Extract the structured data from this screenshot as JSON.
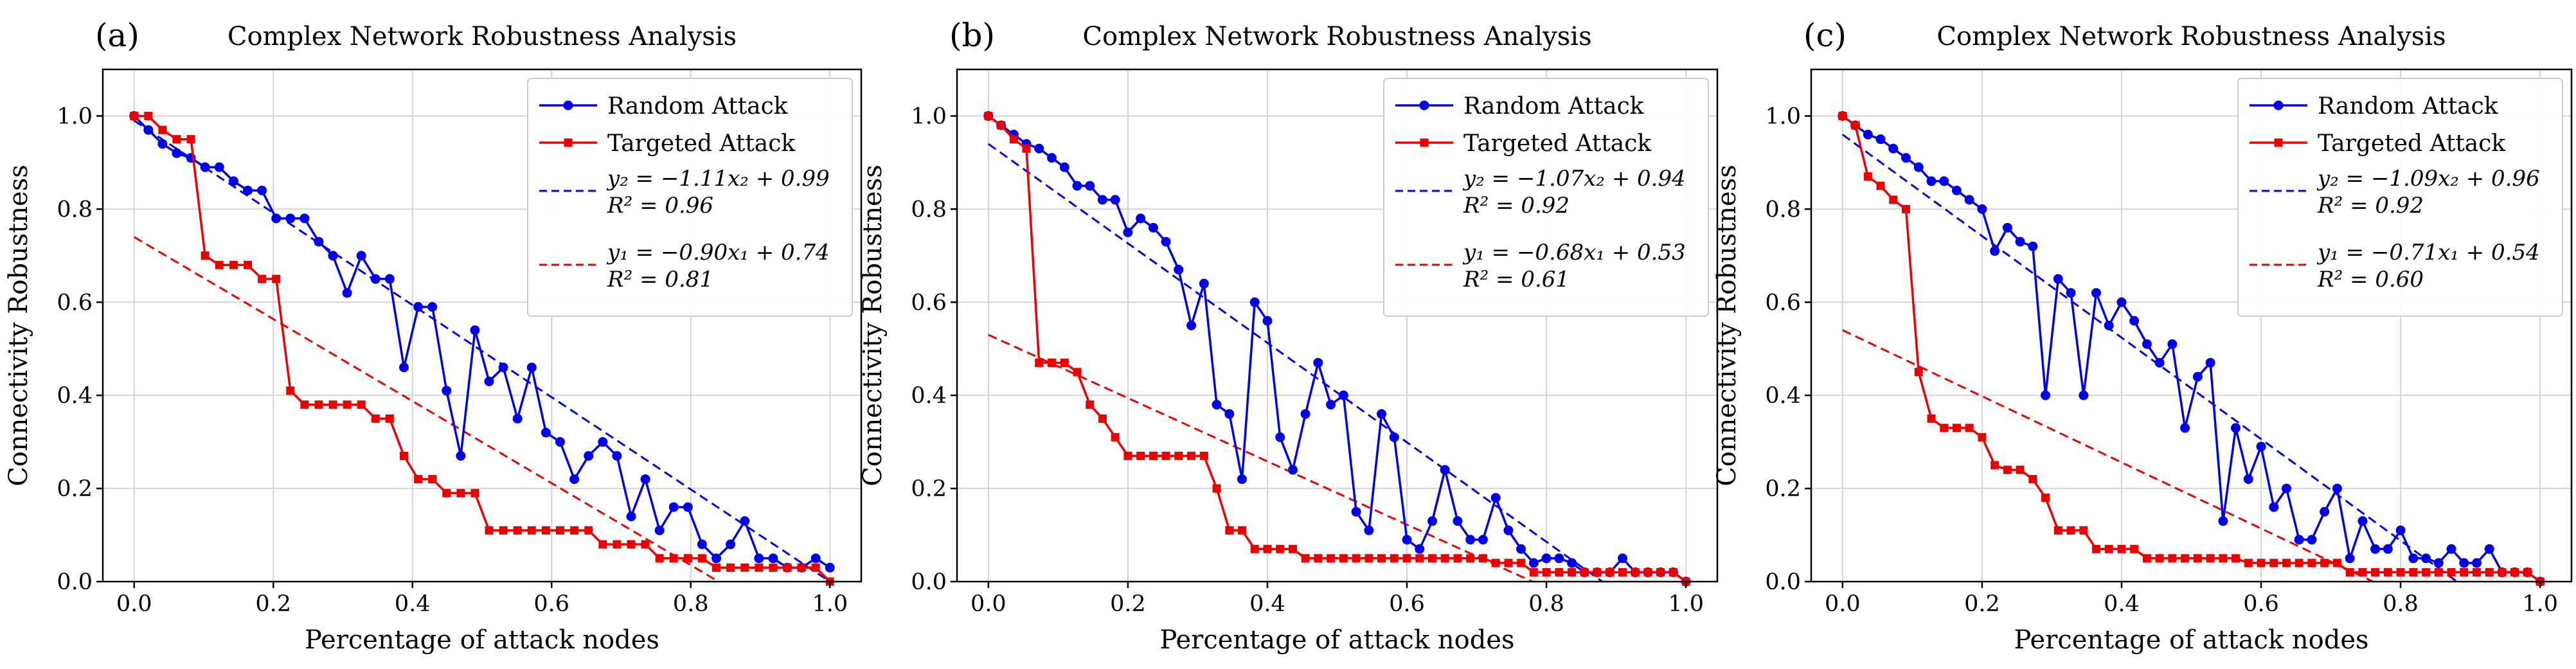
{
  "figure": {
    "title": "Complex Network Robustness Analysis panels (a)-(c)"
  },
  "colors": {
    "random": "#0000ee",
    "targeted": "#ee0000",
    "grid": "#d4d4d4",
    "axis": "#000000"
  },
  "chart_data": [
    {
      "type": "line",
      "panel_label": "(a)",
      "title": "Complex Network Robustness Analysis",
      "xlabel": "Percentage of attack nodes",
      "ylabel": "Connectivity Robustness",
      "xlim": [
        -0.045,
        1.045
      ],
      "ylim": [
        0.0,
        1.1
      ],
      "xticks": [
        0.0,
        0.2,
        0.4,
        0.6,
        0.8,
        1.0
      ],
      "yticks": [
        0.0,
        0.2,
        0.4,
        0.6,
        0.8,
        1.0
      ],
      "xtick_labels": [
        "0.0",
        "0.2",
        "0.4",
        "0.6",
        "0.8",
        "1.0"
      ],
      "ytick_labels": [
        "0.0",
        "0.2",
        "0.4",
        "0.6",
        "0.8",
        "1.0"
      ],
      "grid": true,
      "legend_position": "top-right",
      "legend": {
        "random_label": "Random Attack",
        "targeted_label": "Targeted Attack",
        "fit_random_eq": "y₂ = −1.11x₂ + 0.99",
        "fit_random_r2": "R² = 0.96",
        "fit_targeted_eq": "y₁ = −0.90x₁ + 0.74",
        "fit_targeted_r2": "R² = 0.81"
      },
      "series": [
        {
          "name": "Random Attack",
          "marker": "circle",
          "x": [
            0.0,
            0.0204,
            0.0408,
            0.0612,
            0.0816,
            0.102,
            0.1224,
            0.1429,
            0.1633,
            0.1837,
            0.2041,
            0.2245,
            0.2449,
            0.2653,
            0.2857,
            0.3061,
            0.3265,
            0.3469,
            0.3673,
            0.3878,
            0.4082,
            0.4286,
            0.449,
            0.4694,
            0.4898,
            0.5102,
            0.5306,
            0.551,
            0.5714,
            0.5918,
            0.6122,
            0.6327,
            0.6531,
            0.6735,
            0.6939,
            0.7143,
            0.7347,
            0.7551,
            0.7755,
            0.7959,
            0.8163,
            0.8367,
            0.8571,
            0.8776,
            0.898,
            0.9184,
            0.9388,
            0.9592,
            0.9796,
            1.0
          ],
          "y": [
            1.0,
            0.97,
            0.94,
            0.92,
            0.91,
            0.89,
            0.89,
            0.86,
            0.84,
            0.84,
            0.78,
            0.78,
            0.78,
            0.73,
            0.7,
            0.62,
            0.7,
            0.65,
            0.65,
            0.46,
            0.59,
            0.59,
            0.41,
            0.27,
            0.54,
            0.43,
            0.46,
            0.35,
            0.46,
            0.32,
            0.3,
            0.22,
            0.27,
            0.3,
            0.27,
            0.14,
            0.22,
            0.11,
            0.16,
            0.16,
            0.08,
            0.05,
            0.08,
            0.13,
            0.05,
            0.05,
            0.03,
            0.03,
            0.05,
            0.03
          ]
        },
        {
          "name": "Targeted Attack",
          "marker": "square",
          "x": [
            0.0,
            0.0204,
            0.0408,
            0.0612,
            0.0816,
            0.102,
            0.1224,
            0.1429,
            0.1633,
            0.1837,
            0.2041,
            0.2245,
            0.2449,
            0.2653,
            0.2857,
            0.3061,
            0.3265,
            0.3469,
            0.3673,
            0.3878,
            0.4082,
            0.4286,
            0.449,
            0.4694,
            0.4898,
            0.5102,
            0.5306,
            0.551,
            0.5714,
            0.5918,
            0.6122,
            0.6327,
            0.6531,
            0.6735,
            0.6939,
            0.7143,
            0.7347,
            0.7551,
            0.7755,
            0.7959,
            0.8163,
            0.8367,
            0.8571,
            0.8776,
            0.898,
            0.9184,
            0.9388,
            0.9592,
            0.9796,
            1.0
          ],
          "y": [
            1.0,
            1.0,
            0.97,
            0.95,
            0.95,
            0.7,
            0.68,
            0.68,
            0.68,
            0.65,
            0.65,
            0.41,
            0.38,
            0.38,
            0.38,
            0.38,
            0.38,
            0.35,
            0.35,
            0.27,
            0.22,
            0.22,
            0.19,
            0.19,
            0.19,
            0.11,
            0.11,
            0.11,
            0.11,
            0.11,
            0.11,
            0.11,
            0.11,
            0.08,
            0.08,
            0.08,
            0.08,
            0.05,
            0.05,
            0.05,
            0.05,
            0.03,
            0.03,
            0.03,
            0.03,
            0.03,
            0.03,
            0.03,
            0.03,
            0.0
          ]
        }
      ],
      "fits": [
        {
          "name": "fit_random",
          "slope": -1.11,
          "intercept": 0.99,
          "x_range": [
            0.0,
            1.0
          ]
        },
        {
          "name": "fit_targeted",
          "slope": -0.9,
          "intercept": 0.74,
          "x_range": [
            0.0,
            0.84
          ]
        }
      ]
    },
    {
      "type": "line",
      "panel_label": "(b)",
      "title": "Complex Network Robustness Analysis",
      "xlabel": "Percentage of attack nodes",
      "ylabel": "Connectivity Robustness",
      "xlim": [
        -0.045,
        1.045
      ],
      "ylim": [
        0.0,
        1.1
      ],
      "xticks": [
        0.0,
        0.2,
        0.4,
        0.6,
        0.8,
        1.0
      ],
      "yticks": [
        0.0,
        0.2,
        0.4,
        0.6,
        0.8,
        1.0
      ],
      "xtick_labels": [
        "0.0",
        "0.2",
        "0.4",
        "0.6",
        "0.8",
        "1.0"
      ],
      "ytick_labels": [
        "0.0",
        "0.2",
        "0.4",
        "0.6",
        "0.8",
        "1.0"
      ],
      "grid": true,
      "legend_position": "top-right",
      "legend": {
        "random_label": "Random Attack",
        "targeted_label": "Targeted Attack",
        "fit_random_eq": "y₂ = −1.07x₂ + 0.94",
        "fit_random_r2": "R² = 0.92",
        "fit_targeted_eq": "y₁ = −0.68x₁ + 0.53",
        "fit_targeted_r2": "R² = 0.61"
      },
      "series": [
        {
          "name": "Random Attack",
          "marker": "circle",
          "x": [
            0.0,
            0.0182,
            0.0364,
            0.0545,
            0.0727,
            0.0909,
            0.1091,
            0.1273,
            0.1455,
            0.1636,
            0.1818,
            0.2,
            0.2182,
            0.2364,
            0.2545,
            0.2727,
            0.2909,
            0.3091,
            0.3273,
            0.3455,
            0.3636,
            0.3818,
            0.4,
            0.4182,
            0.4364,
            0.4545,
            0.4727,
            0.4909,
            0.5091,
            0.5273,
            0.5455,
            0.5636,
            0.5818,
            0.6,
            0.6182,
            0.6364,
            0.6545,
            0.6727,
            0.6909,
            0.7091,
            0.7273,
            0.7455,
            0.7636,
            0.7818,
            0.8,
            0.8182,
            0.8364,
            0.8545,
            0.8727,
            0.8909,
            0.9091,
            0.9273,
            0.9455,
            0.9636,
            0.9818,
            1.0
          ],
          "y": [
            1.0,
            0.98,
            0.96,
            0.94,
            0.93,
            0.91,
            0.89,
            0.85,
            0.85,
            0.82,
            0.82,
            0.75,
            0.78,
            0.76,
            0.73,
            0.67,
            0.55,
            0.64,
            0.38,
            0.36,
            0.22,
            0.6,
            0.56,
            0.31,
            0.24,
            0.36,
            0.47,
            0.38,
            0.4,
            0.15,
            0.11,
            0.36,
            0.31,
            0.09,
            0.07,
            0.13,
            0.24,
            0.13,
            0.09,
            0.09,
            0.18,
            0.11,
            0.07,
            0.04,
            0.05,
            0.05,
            0.04,
            0.02,
            0.02,
            0.02,
            0.05,
            0.02,
            0.02,
            0.02,
            0.02,
            0.0
          ]
        },
        {
          "name": "Targeted Attack",
          "marker": "square",
          "x": [
            0.0,
            0.0182,
            0.0364,
            0.0545,
            0.0727,
            0.0909,
            0.1091,
            0.1273,
            0.1455,
            0.1636,
            0.1818,
            0.2,
            0.2182,
            0.2364,
            0.2545,
            0.2727,
            0.2909,
            0.3091,
            0.3273,
            0.3455,
            0.3636,
            0.3818,
            0.4,
            0.4182,
            0.4364,
            0.4545,
            0.4727,
            0.4909,
            0.5091,
            0.5273,
            0.5455,
            0.5636,
            0.5818,
            0.6,
            0.6182,
            0.6364,
            0.6545,
            0.6727,
            0.6909,
            0.7091,
            0.7273,
            0.7455,
            0.7636,
            0.7818,
            0.8,
            0.8182,
            0.8364,
            0.8545,
            0.8727,
            0.8909,
            0.9091,
            0.9273,
            0.9455,
            0.9636,
            0.9818,
            1.0
          ],
          "y": [
            1.0,
            0.98,
            0.95,
            0.93,
            0.47,
            0.47,
            0.47,
            0.45,
            0.38,
            0.35,
            0.31,
            0.27,
            0.27,
            0.27,
            0.27,
            0.27,
            0.27,
            0.27,
            0.2,
            0.11,
            0.11,
            0.07,
            0.07,
            0.07,
            0.07,
            0.05,
            0.05,
            0.05,
            0.05,
            0.05,
            0.05,
            0.05,
            0.05,
            0.05,
            0.05,
            0.05,
            0.05,
            0.05,
            0.05,
            0.05,
            0.04,
            0.04,
            0.04,
            0.02,
            0.02,
            0.02,
            0.02,
            0.02,
            0.02,
            0.02,
            0.02,
            0.02,
            0.02,
            0.02,
            0.02,
            0.0
          ]
        }
      ],
      "fits": [
        {
          "name": "fit_random",
          "slope": -1.07,
          "intercept": 0.94,
          "x_range": [
            0.0,
            0.88
          ]
        },
        {
          "name": "fit_targeted",
          "slope": -0.68,
          "intercept": 0.53,
          "x_range": [
            0.0,
            0.78
          ]
        }
      ]
    },
    {
      "type": "line",
      "panel_label": "(c)",
      "title": "Complex Network Robustness Analysis",
      "xlabel": "Percentage of attack nodes",
      "ylabel": "Connectivity Robustness",
      "xlim": [
        -0.045,
        1.045
      ],
      "ylim": [
        0.0,
        1.1
      ],
      "xticks": [
        0.0,
        0.2,
        0.4,
        0.6,
        0.8,
        1.0
      ],
      "yticks": [
        0.0,
        0.2,
        0.4,
        0.6,
        0.8,
        1.0
      ],
      "xtick_labels": [
        "0.0",
        "0.2",
        "0.4",
        "0.6",
        "0.8",
        "1.0"
      ],
      "ytick_labels": [
        "0.0",
        "0.2",
        "0.4",
        "0.6",
        "0.8",
        "1.0"
      ],
      "grid": true,
      "legend_position": "top-right",
      "legend": {
        "random_label": "Random Attack",
        "targeted_label": "Targeted Attack",
        "fit_random_eq": "y₂ = −1.09x₂ + 0.96",
        "fit_random_r2": "R² = 0.92",
        "fit_targeted_eq": "y₁ = −0.71x₁ + 0.54",
        "fit_targeted_r2": "R² = 0.60"
      },
      "series": [
        {
          "name": "Random Attack",
          "marker": "circle",
          "x": [
            0.0,
            0.0182,
            0.0364,
            0.0545,
            0.0727,
            0.0909,
            0.1091,
            0.1273,
            0.1455,
            0.1636,
            0.1818,
            0.2,
            0.2182,
            0.2364,
            0.2545,
            0.2727,
            0.2909,
            0.3091,
            0.3273,
            0.3455,
            0.3636,
            0.3818,
            0.4,
            0.4182,
            0.4364,
            0.4545,
            0.4727,
            0.4909,
            0.5091,
            0.5273,
            0.5455,
            0.5636,
            0.5818,
            0.6,
            0.6182,
            0.6364,
            0.6545,
            0.6727,
            0.6909,
            0.7091,
            0.7273,
            0.7455,
            0.7636,
            0.7818,
            0.8,
            0.8182,
            0.8364,
            0.8545,
            0.8727,
            0.8909,
            0.9091,
            0.9273,
            0.9455,
            0.9636,
            0.9818,
            1.0
          ],
          "y": [
            1.0,
            0.98,
            0.96,
            0.95,
            0.93,
            0.91,
            0.89,
            0.86,
            0.86,
            0.84,
            0.82,
            0.8,
            0.71,
            0.76,
            0.73,
            0.72,
            0.4,
            0.65,
            0.62,
            0.4,
            0.62,
            0.55,
            0.6,
            0.56,
            0.51,
            0.47,
            0.51,
            0.33,
            0.44,
            0.47,
            0.13,
            0.33,
            0.22,
            0.29,
            0.16,
            0.2,
            0.09,
            0.09,
            0.15,
            0.2,
            0.05,
            0.13,
            0.07,
            0.07,
            0.11,
            0.05,
            0.05,
            0.04,
            0.07,
            0.04,
            0.04,
            0.07,
            0.02,
            0.02,
            0.02,
            0.0
          ]
        },
        {
          "name": "Targeted Attack",
          "marker": "square",
          "x": [
            0.0,
            0.0182,
            0.0364,
            0.0545,
            0.0727,
            0.0909,
            0.1091,
            0.1273,
            0.1455,
            0.1636,
            0.1818,
            0.2,
            0.2182,
            0.2364,
            0.2545,
            0.2727,
            0.2909,
            0.3091,
            0.3273,
            0.3455,
            0.3636,
            0.3818,
            0.4,
            0.4182,
            0.4364,
            0.4545,
            0.4727,
            0.4909,
            0.5091,
            0.5273,
            0.5455,
            0.5636,
            0.5818,
            0.6,
            0.6182,
            0.6364,
            0.6545,
            0.6727,
            0.6909,
            0.7091,
            0.7273,
            0.7455,
            0.7636,
            0.7818,
            0.8,
            0.8182,
            0.8364,
            0.8545,
            0.8727,
            0.8909,
            0.9091,
            0.9273,
            0.9455,
            0.9636,
            0.9818,
            1.0
          ],
          "y": [
            1.0,
            0.98,
            0.87,
            0.85,
            0.82,
            0.8,
            0.45,
            0.35,
            0.33,
            0.33,
            0.33,
            0.31,
            0.25,
            0.24,
            0.24,
            0.22,
            0.18,
            0.11,
            0.11,
            0.11,
            0.07,
            0.07,
            0.07,
            0.07,
            0.05,
            0.05,
            0.05,
            0.05,
            0.05,
            0.05,
            0.05,
            0.05,
            0.04,
            0.04,
            0.04,
            0.04,
            0.04,
            0.04,
            0.04,
            0.04,
            0.02,
            0.02,
            0.02,
            0.02,
            0.02,
            0.02,
            0.02,
            0.02,
            0.02,
            0.02,
            0.02,
            0.02,
            0.02,
            0.02,
            0.02,
            0.0
          ]
        }
      ],
      "fits": [
        {
          "name": "fit_random",
          "slope": -1.09,
          "intercept": 0.96,
          "x_range": [
            0.0,
            0.88
          ]
        },
        {
          "name": "fit_targeted",
          "slope": -0.71,
          "intercept": 0.54,
          "x_range": [
            0.0,
            0.76
          ]
        }
      ]
    }
  ]
}
